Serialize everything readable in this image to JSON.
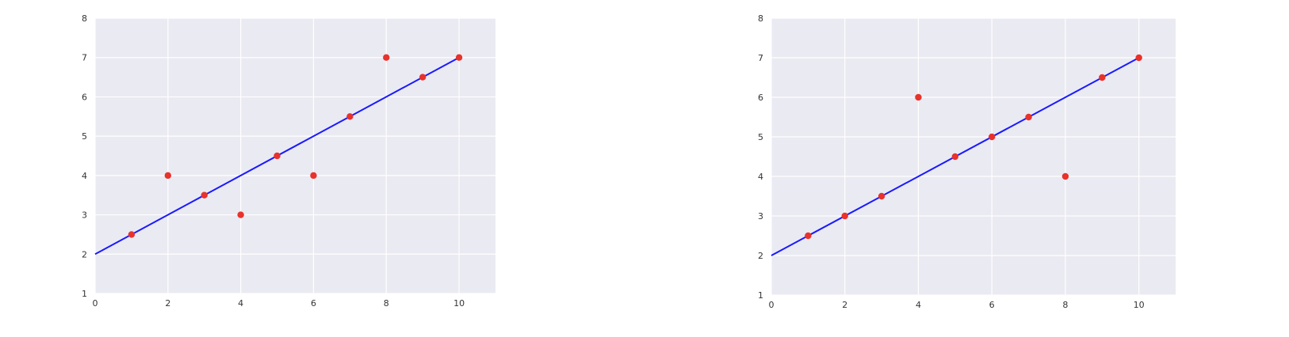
{
  "colors": {
    "plot_background": "#eaeaf2",
    "grid": "#ffffff",
    "points": "#e8322b",
    "fit_line": "#1a1aff",
    "text": "#333333"
  },
  "chart_data": [
    {
      "type": "scatter",
      "title": "",
      "xlabel": "",
      "ylabel": "",
      "xlim": [
        0,
        11
      ],
      "ylim": [
        1,
        8
      ],
      "xticks": [
        0,
        2,
        4,
        6,
        8,
        10
      ],
      "yticks": [
        1,
        2,
        3,
        4,
        5,
        6,
        7,
        8
      ],
      "grid": true,
      "points": {
        "x": [
          1,
          2,
          3,
          4,
          5,
          6,
          7,
          8,
          9,
          10
        ],
        "y": [
          2.5,
          4,
          3.5,
          3,
          4.5,
          4,
          5.5,
          7,
          6.5,
          7
        ]
      },
      "fit_line": {
        "x": [
          0,
          10
        ],
        "y": [
          2,
          7
        ]
      }
    },
    {
      "type": "scatter",
      "title": "",
      "xlabel": "",
      "ylabel": "",
      "xlim": [
        0,
        11
      ],
      "ylim": [
        1,
        8
      ],
      "xticks": [
        0,
        2,
        4,
        6,
        8,
        10
      ],
      "yticks": [
        1,
        2,
        3,
        4,
        5,
        6,
        7,
        8
      ],
      "grid": true,
      "points": {
        "x": [
          1,
          2,
          3,
          4,
          5,
          6,
          7,
          8,
          9,
          10
        ],
        "y": [
          2.5,
          3,
          3.5,
          6,
          4.5,
          5,
          5.5,
          4,
          6.5,
          7
        ]
      },
      "fit_line": {
        "x": [
          0,
          10
        ],
        "y": [
          2,
          7
        ]
      }
    }
  ]
}
